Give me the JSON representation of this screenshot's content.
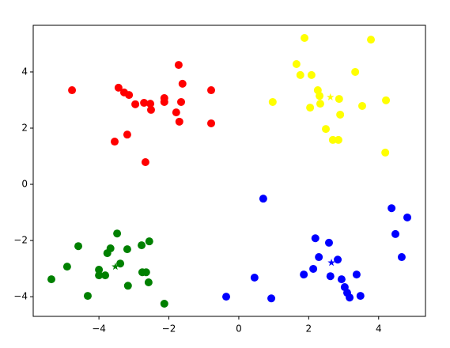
{
  "chart_data": {
    "type": "scatter",
    "xlim": [
      -5.88,
      5.34
    ],
    "ylim": [
      -4.7,
      5.66
    ],
    "xticks": [
      {
        "value": -4,
        "label": "−4"
      },
      {
        "value": -2,
        "label": "−2"
      },
      0,
      2,
      4
    ],
    "yticks": [
      {
        "value": -4,
        "label": "−4"
      },
      {
        "value": -2,
        "label": "−2"
      },
      0,
      2,
      4
    ],
    "series": [
      {
        "color": "red",
        "marker": "circle",
        "x": [
          -4.77,
          -3.44,
          -3.28,
          -3.14,
          -2.96,
          -2.71,
          -2.53,
          -2.51,
          -2.13,
          -2.13,
          -1.72,
          -1.61,
          -1.65,
          -1.79,
          -1.7,
          -0.79,
          -0.79,
          -3.55,
          -3.19,
          -2.67
        ],
        "values": [
          3.35,
          3.44,
          3.27,
          3.18,
          2.85,
          2.9,
          2.87,
          2.65,
          3.07,
          2.93,
          4.25,
          3.58,
          2.93,
          2.56,
          2.23,
          3.35,
          2.17,
          1.52,
          1.77,
          0.79
        ]
      },
      {
        "color": "yellow",
        "marker": "circle",
        "x": [
          1.88,
          3.78,
          1.65,
          1.76,
          2.08,
          2.26,
          2.31,
          2.33,
          2.04,
          3.33,
          0.97,
          2.87,
          2.9,
          3.53,
          4.21,
          2.49,
          2.69,
          2.85,
          4.19
        ],
        "values": [
          5.21,
          5.15,
          4.28,
          3.89,
          3.89,
          3.35,
          3.15,
          2.87,
          2.73,
          4.0,
          2.93,
          3.04,
          2.48,
          2.79,
          2.99,
          1.97,
          1.58,
          1.58,
          1.13
        ]
      },
      {
        "color": "blue",
        "marker": "circle",
        "x": [
          0.7,
          -0.36,
          0.45,
          0.93,
          1.86,
          2.13,
          2.19,
          2.29,
          2.58,
          2.62,
          2.83,
          2.94,
          3.03,
          3.1,
          3.17,
          3.37,
          3.48,
          4.37,
          4.82,
          4.48,
          4.66
        ],
        "values": [
          -0.51,
          -4.0,
          -3.32,
          -4.06,
          -3.21,
          -3.01,
          -1.92,
          -2.59,
          -2.08,
          -3.27,
          -2.68,
          -3.38,
          -3.66,
          -3.86,
          -4.03,
          -3.21,
          -3.97,
          -0.85,
          -1.18,
          -1.77,
          -2.59
        ]
      },
      {
        "color": "green",
        "marker": "circle",
        "x": [
          -5.36,
          -4.91,
          -4.59,
          -4.32,
          -4.0,
          -4.0,
          -3.82,
          -3.76,
          -3.67,
          -3.48,
          -3.39,
          -3.19,
          -3.17,
          -2.78,
          -2.56,
          -2.76,
          -2.65,
          -2.58,
          -2.13
        ],
        "values": [
          -3.38,
          -2.93,
          -2.2,
          -3.97,
          -3.04,
          -3.24,
          -3.24,
          -2.45,
          -2.28,
          -1.75,
          -2.82,
          -2.31,
          -3.61,
          -2.17,
          -2.03,
          -3.13,
          -3.13,
          -3.49,
          -4.25
        ]
      },
      {
        "color": "yellow",
        "marker": "star",
        "x": [
          2.62
        ],
        "values": [
          3.1
        ]
      },
      {
        "color": "blue",
        "marker": "star",
        "x": [
          2.65
        ],
        "values": [
          -2.79
        ]
      },
      {
        "color": "green",
        "marker": "star",
        "x": [
          -3.53
        ],
        "values": [
          -2.93
        ]
      }
    ]
  }
}
